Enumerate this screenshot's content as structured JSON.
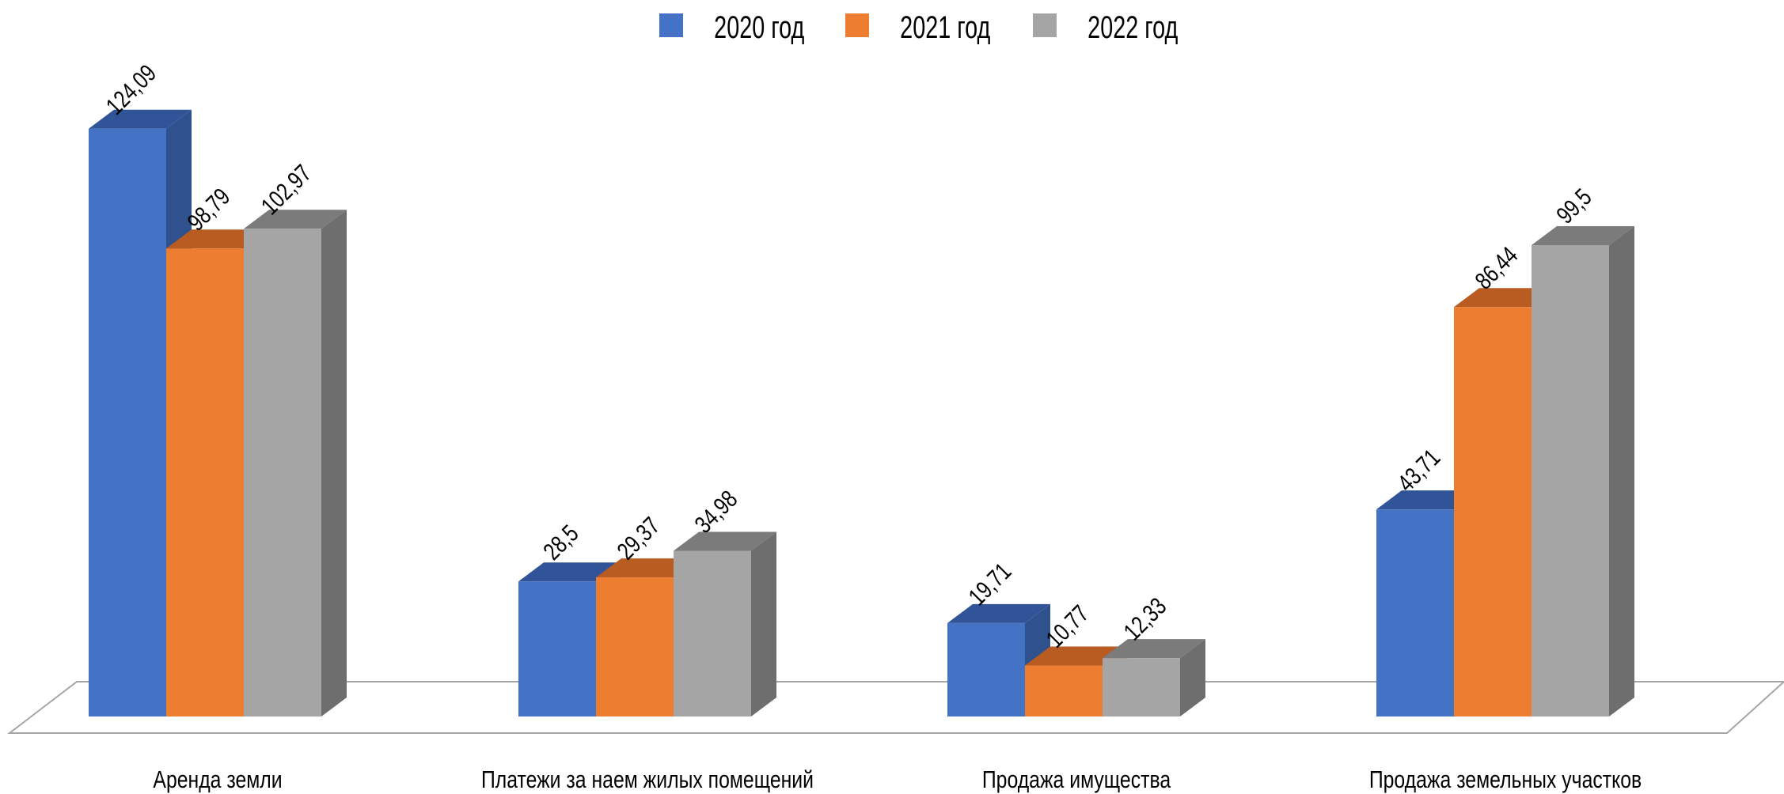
{
  "chart_data": {
    "type": "bar",
    "subtype": "3d-clustered-column",
    "categories": [
      "Аренда земли",
      "Платежи за наем жилых помещений",
      "Продажа имущества",
      "Продажа земельных участков"
    ],
    "series": [
      {
        "name": "2020 год",
        "values": [
          124.09,
          28.5,
          19.71,
          43.71
        ],
        "labels": [
          "124,09",
          "28,5",
          "19,71",
          "43,71"
        ],
        "color": "#4472C4",
        "side_color": "#2F528F",
        "top_color": "#305497"
      },
      {
        "name": "2021 год",
        "values": [
          98.79,
          29.37,
          10.77,
          86.44
        ],
        "labels": [
          "98,79",
          "29,37",
          "10,77",
          "86,44"
        ],
        "color": "#ED7D31",
        "side_color": "#AE5A21",
        "top_color": "#B85C22"
      },
      {
        "name": "2022 год",
        "values": [
          102.97,
          34.98,
          12.33,
          99.5
        ],
        "labels": [
          "102,97",
          "34,98",
          "12,33",
          "99,5"
        ],
        "color": "#A5A5A5",
        "side_color": "#6E6E6E",
        "top_color": "#7B7B7B"
      }
    ],
    "legend_position": "top",
    "grid": false,
    "axis_labels_visible": false,
    "floor_color": "#A6A6A6"
  }
}
